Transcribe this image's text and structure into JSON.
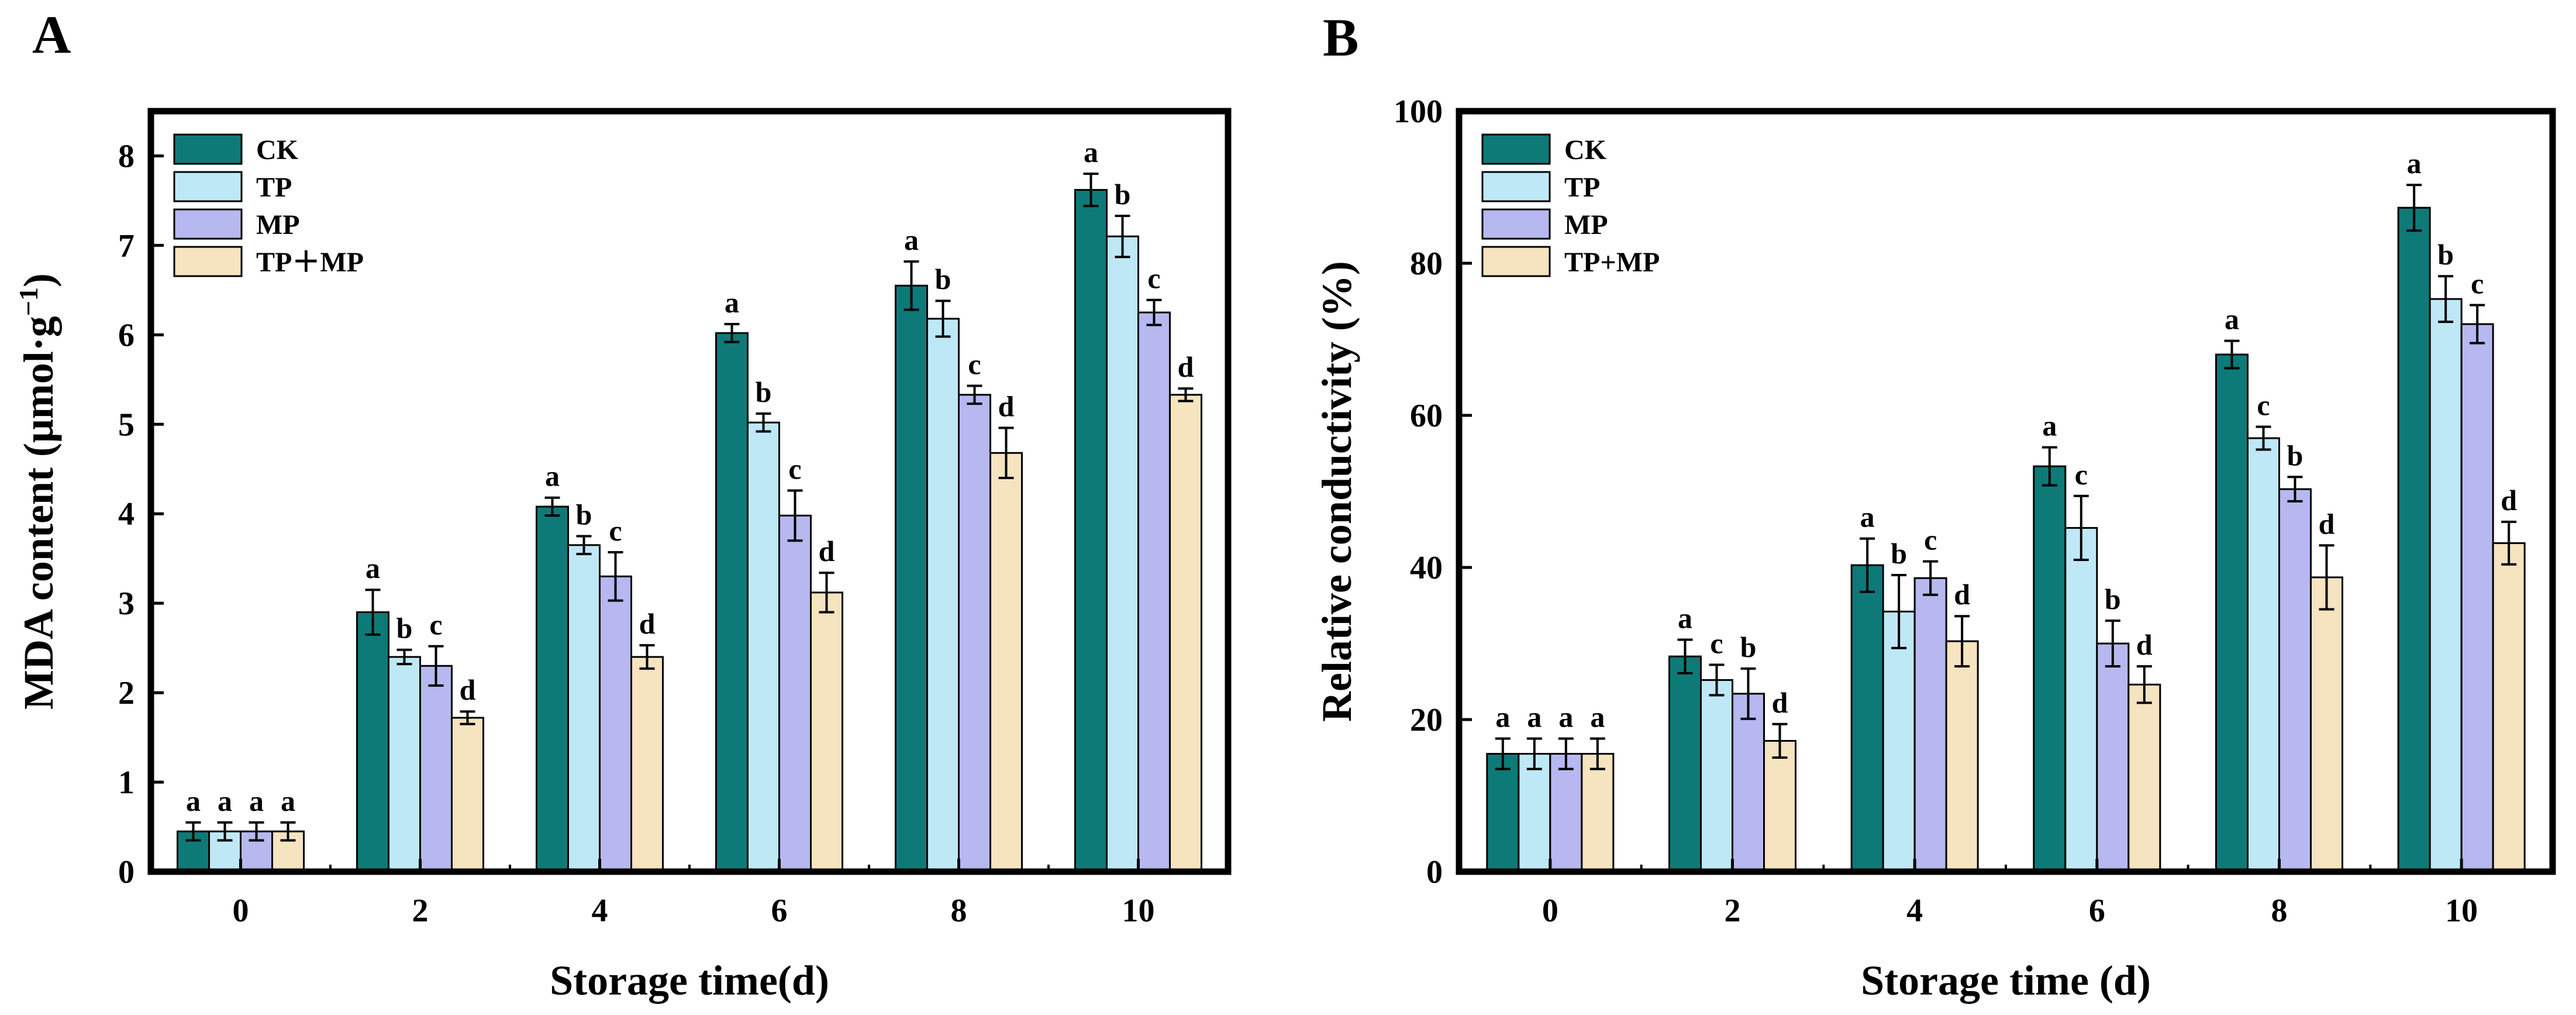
{
  "chart_data": [
    {
      "panel": "A",
      "type": "bar",
      "title": "",
      "xlabel": "Storage time(d)",
      "ylabel": "MDA content (μmol·g⁻¹)",
      "ylabel_parts": {
        "main": "MDA content (μmol·g",
        "sup": "−1",
        "close": ")"
      },
      "ylim": [
        0,
        8.5
      ],
      "yticks": [
        0,
        1,
        2,
        3,
        4,
        5,
        6,
        7,
        8
      ],
      "categories": [
        "0",
        "2",
        "4",
        "6",
        "8",
        "10"
      ],
      "legend": {
        "placement": "top-left"
      },
      "series": [
        {
          "name": "CK",
          "color": "#0e7a78",
          "values": [
            0.45,
            2.9,
            4.08,
            6.02,
            6.55,
            7.62
          ],
          "errors": [
            0.1,
            0.25,
            0.1,
            0.1,
            0.27,
            0.18
          ],
          "letters": [
            "a",
            "a",
            "a",
            "a",
            "a",
            "a"
          ]
        },
        {
          "name": "TP",
          "color": "#bfe8f7",
          "values": [
            0.45,
            2.4,
            3.65,
            5.02,
            6.18,
            7.1
          ],
          "errors": [
            0.1,
            0.08,
            0.1,
            0.1,
            0.2,
            0.23
          ],
          "letters": [
            "a",
            "b",
            "b",
            "b",
            "b",
            "b"
          ]
        },
        {
          "name": "MP",
          "color": "#b6b8ef",
          "values": [
            0.45,
            2.3,
            3.3,
            3.98,
            5.33,
            6.25
          ],
          "errors": [
            0.1,
            0.22,
            0.27,
            0.28,
            0.1,
            0.14
          ],
          "letters": [
            "a",
            "c",
            "c",
            "c",
            "c",
            "c"
          ]
        },
        {
          "name": "TP＋MP",
          "color": "#f6e3bf",
          "values": [
            0.45,
            1.72,
            2.4,
            3.12,
            4.68,
            5.33
          ],
          "errors": [
            0.1,
            0.07,
            0.13,
            0.22,
            0.28,
            0.07
          ],
          "letters": [
            "a",
            "d",
            "d",
            "d",
            "d",
            "d"
          ]
        }
      ]
    },
    {
      "panel": "B",
      "type": "bar",
      "title": "",
      "xlabel": "Storage time (d)",
      "ylabel": "Relative conductivity (%)",
      "ylim": [
        0,
        100
      ],
      "yticks": [
        0,
        20,
        40,
        60,
        80,
        100
      ],
      "categories": [
        "0",
        "2",
        "4",
        "6",
        "8",
        "10"
      ],
      "legend": {
        "placement": "top-left"
      },
      "series": [
        {
          "name": "CK",
          "color": "#0e7a78",
          "values": [
            15.5,
            28.3,
            40.3,
            53.3,
            68.0,
            87.3
          ],
          "errors": [
            2.0,
            2.2,
            3.5,
            2.5,
            1.8,
            3.0
          ],
          "letters": [
            "a",
            "a",
            "a",
            "a",
            "a",
            "a"
          ]
        },
        {
          "name": "TP",
          "color": "#bfe8f7",
          "values": [
            15.5,
            25.2,
            34.2,
            45.2,
            57.0,
            75.3
          ],
          "errors": [
            2.0,
            2.0,
            4.8,
            4.2,
            1.5,
            3.0
          ],
          "letters": [
            "a",
            "c",
            "b",
            "c",
            "c",
            "b"
          ]
        },
        {
          "name": "MP",
          "color": "#b6b8ef",
          "values": [
            15.5,
            23.4,
            38.6,
            30.0,
            50.3,
            72.0
          ],
          "errors": [
            2.0,
            3.3,
            2.2,
            3.0,
            1.6,
            2.5
          ],
          "letters": [
            "a",
            "b",
            "c",
            "b",
            "b",
            "c"
          ]
        },
        {
          "name": "TP+MP",
          "color": "#f6e3bf",
          "values": [
            15.5,
            17.2,
            30.3,
            24.6,
            38.7,
            43.2
          ],
          "errors": [
            2.0,
            2.2,
            3.3,
            2.4,
            4.2,
            2.8
          ],
          "letters": [
            "a",
            "d",
            "d",
            "d",
            "d",
            "d"
          ]
        }
      ]
    }
  ]
}
